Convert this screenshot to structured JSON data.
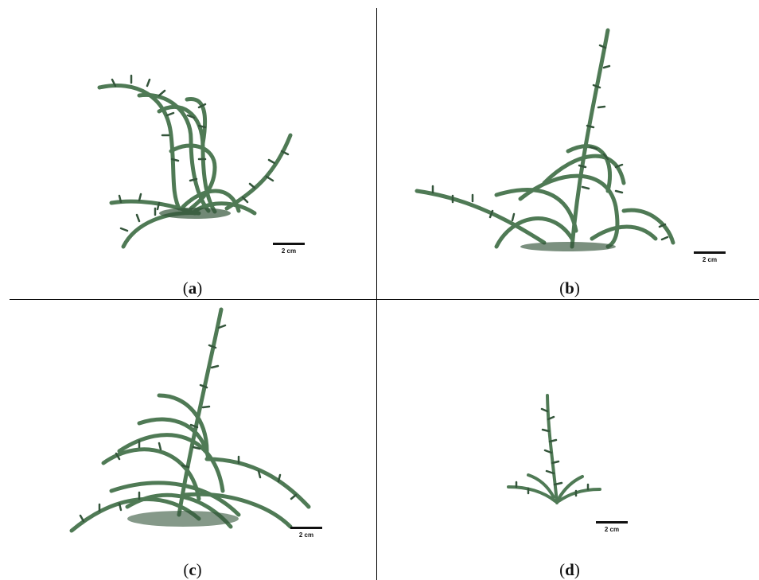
{
  "panels": [
    {
      "id": "a",
      "caption_open": "(",
      "caption_letter": "a",
      "caption_close": ")",
      "scale_label": "2 cm"
    },
    {
      "id": "b",
      "caption_open": "(",
      "caption_letter": "b",
      "caption_close": ")",
      "scale_label": "2 cm"
    },
    {
      "id": "c",
      "caption_open": "(",
      "caption_letter": "c",
      "caption_close": ")",
      "scale_label": "2 cm"
    },
    {
      "id": "d",
      "caption_open": "(",
      "caption_letter": "d",
      "caption_close": ")",
      "scale_label": "2 cm"
    }
  ],
  "colors": {
    "plant": "#4f7a55",
    "plant_dark": "#34553b",
    "line": "#000000"
  },
  "icons": {
    "plant_photo": "plant-icon"
  }
}
